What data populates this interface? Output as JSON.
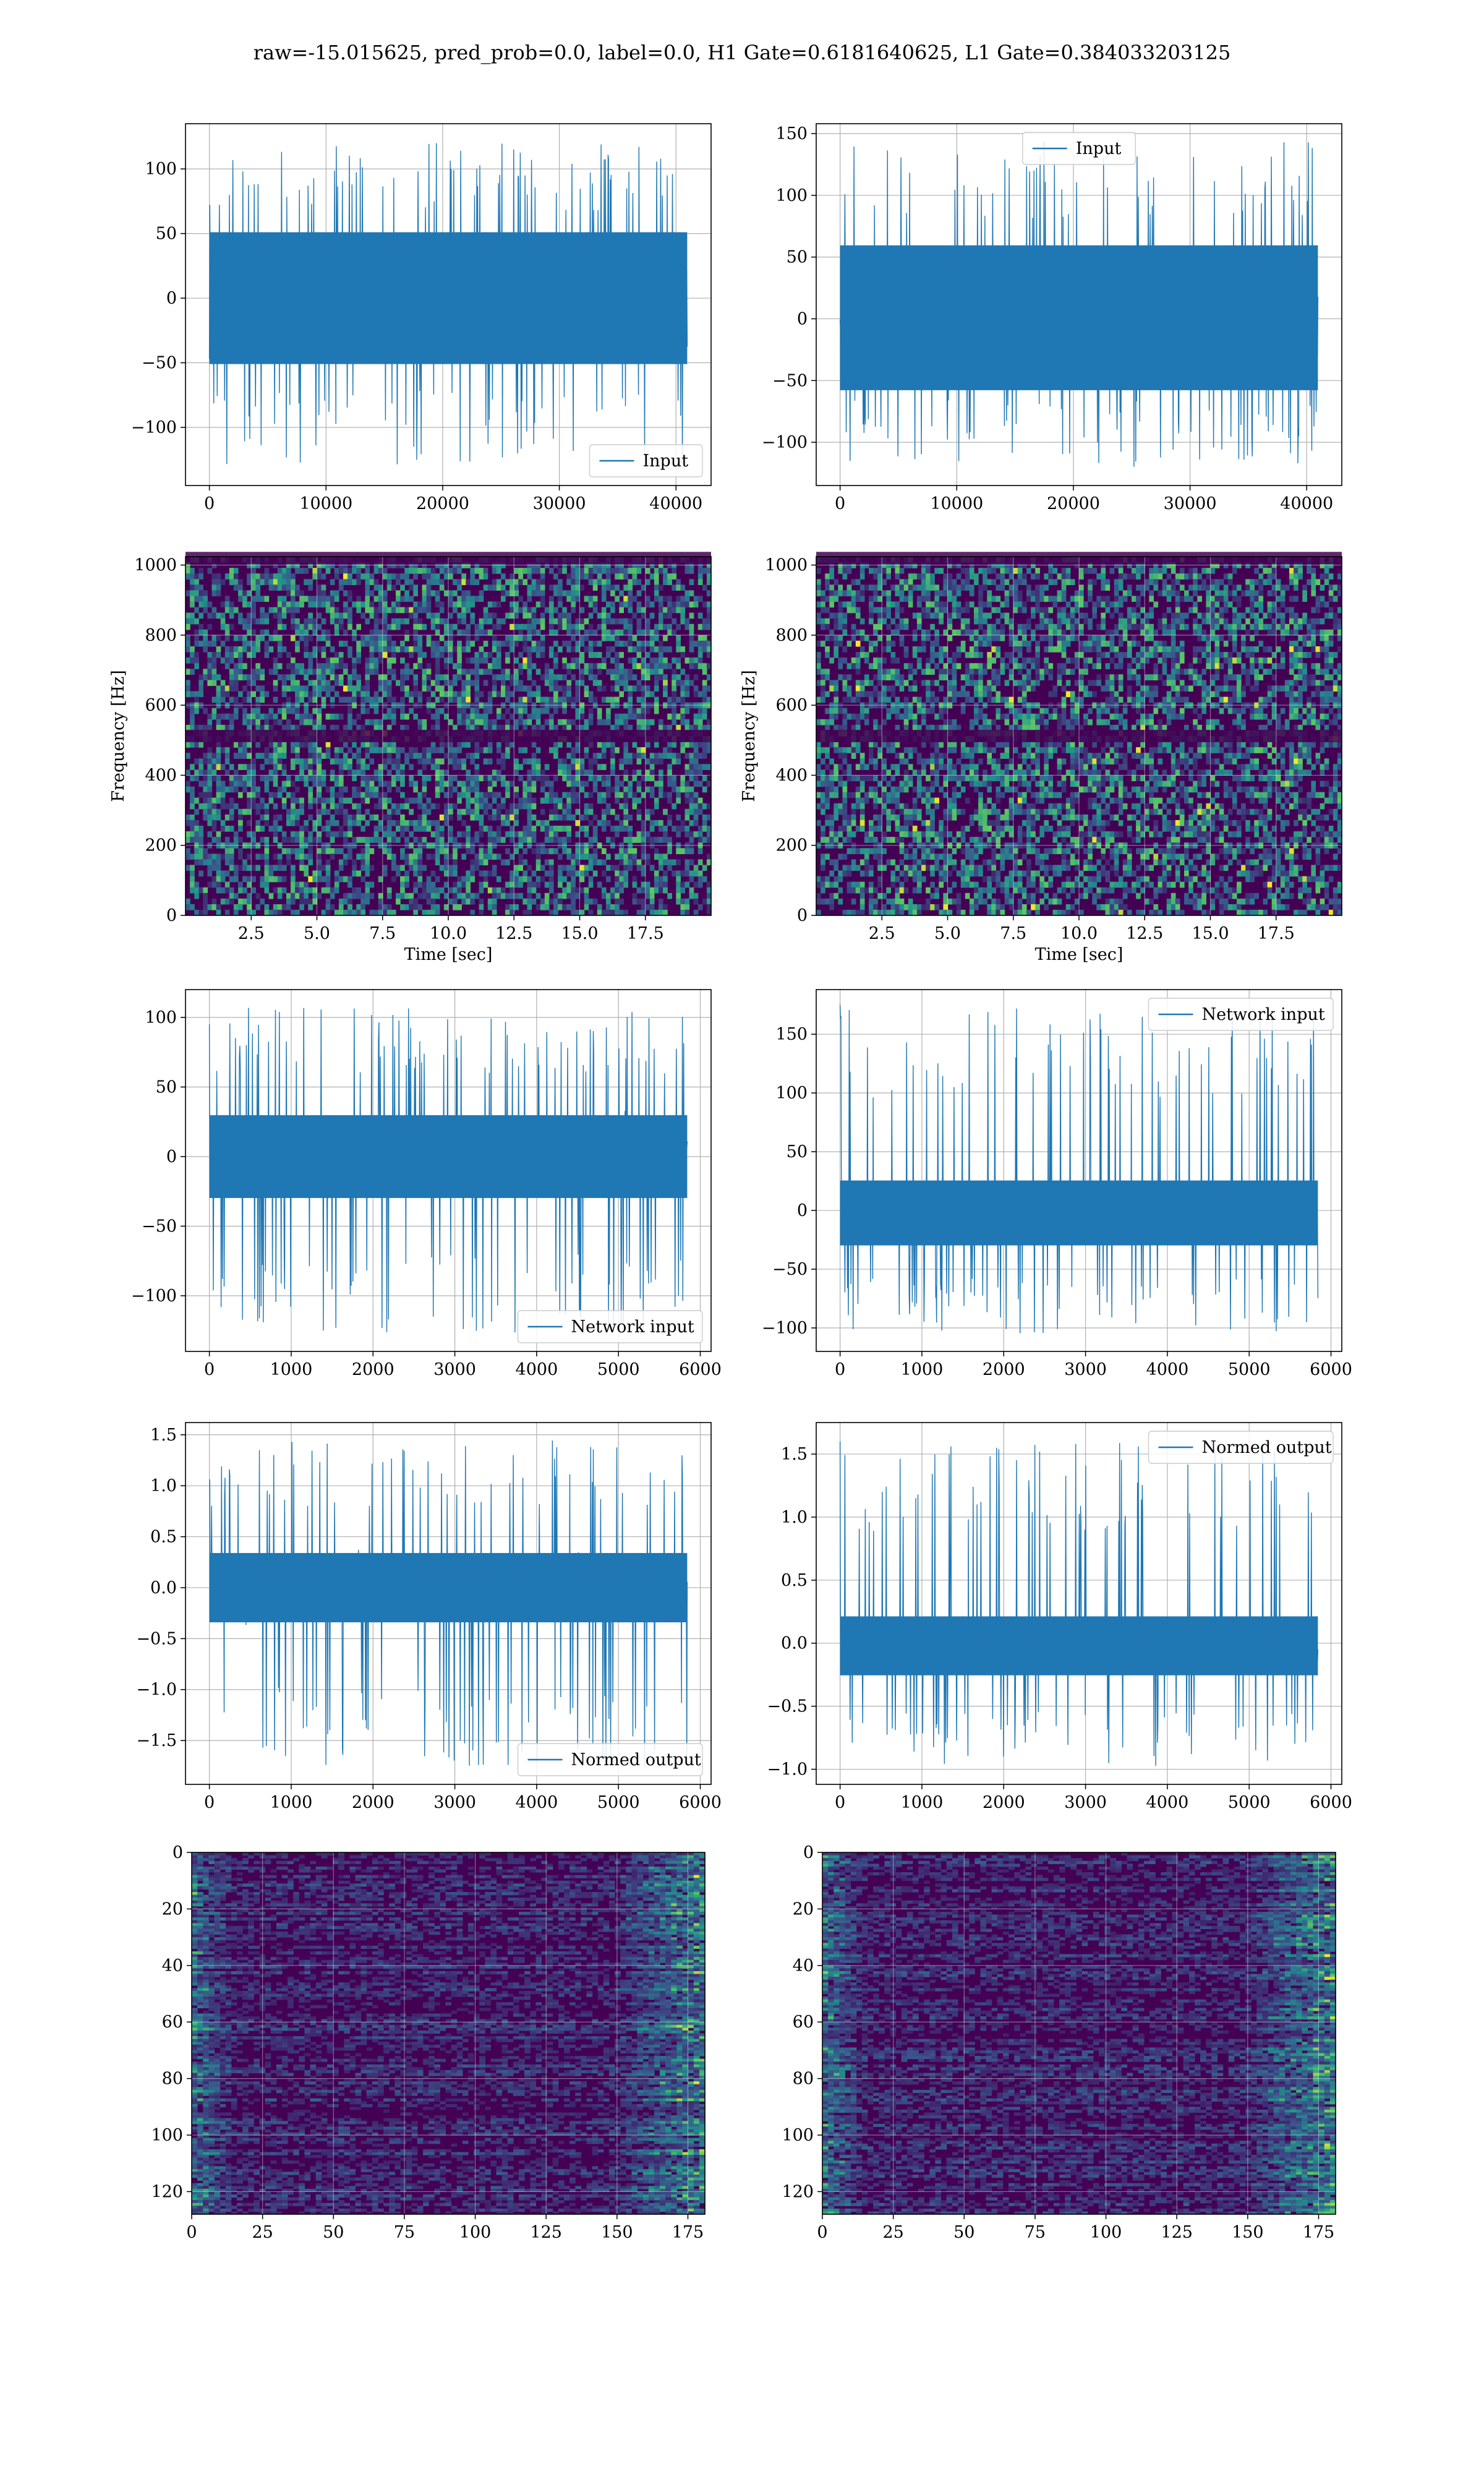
{
  "figure": {
    "title": "raw=-15.015625, pred_prob=0.0, label=0.0, H1 Gate=0.6181640625, L1 Gate=0.384033203125"
  },
  "colors": {
    "series": "#1f77b4",
    "grid": "#b0b0b0",
    "viridis_low": "#440154",
    "viridis_mid": "#21918c",
    "viridis_high": "#fde725"
  },
  "chart_data": [
    {
      "id": "h1-input",
      "type": "line",
      "series": [
        {
          "name": "Input"
        }
      ],
      "x_range": [
        0,
        40960
      ],
      "band": [
        -60,
        60
      ],
      "spike_range": [
        -130,
        122
      ],
      "xlim": [
        -2048,
        43008
      ],
      "ylim": [
        -145,
        135
      ],
      "xticks": [
        0,
        10000,
        20000,
        30000,
        40000
      ],
      "xtick_labels": [
        "0",
        "10000",
        "20000",
        "30000",
        "40000"
      ],
      "yticks": [
        -100,
        -50,
        0,
        50,
        100
      ],
      "ytick_labels": [
        "−100",
        "−50",
        "0",
        "50",
        "100"
      ],
      "legend": "lower right",
      "grid": true,
      "xlabel": "",
      "ylabel": ""
    },
    {
      "id": "l1-input",
      "type": "line",
      "series": [
        {
          "name": "Input"
        }
      ],
      "x_range": [
        0,
        40960
      ],
      "band": [
        -68,
        70
      ],
      "spike_range": [
        -120,
        145
      ],
      "xlim": [
        -2048,
        43008
      ],
      "ylim": [
        -135,
        158
      ],
      "xticks": [
        0,
        10000,
        20000,
        30000,
        40000
      ],
      "xtick_labels": [
        "0",
        "10000",
        "20000",
        "30000",
        "40000"
      ],
      "yticks": [
        -100,
        -50,
        0,
        50,
        100,
        150
      ],
      "ytick_labels": [
        "−100",
        "−50",
        "0",
        "50",
        "100",
        "150"
      ],
      "legend": "upper center",
      "grid": true,
      "xlabel": "",
      "ylabel": ""
    },
    {
      "id": "h1-spectrogram",
      "type": "heatmap",
      "xlim": [
        0,
        20
      ],
      "ylim": [
        0,
        1024
      ],
      "xticks": [
        2.5,
        5,
        7.5,
        10,
        12.5,
        15,
        17.5
      ],
      "xtick_labels": [
        "2.5",
        "5.0",
        "7.5",
        "10.0",
        "12.5",
        "15.0",
        "17.5"
      ],
      "yticks": [
        0,
        200,
        400,
        600,
        800,
        1000
      ],
      "ytick_labels": [
        "0",
        "200",
        "400",
        "600",
        "800",
        "1000"
      ],
      "dark_bands": [
        512,
        1020
      ],
      "grid": true,
      "xlabel": "Time [sec]",
      "ylabel": "Frequency [Hz]"
    },
    {
      "id": "l1-spectrogram",
      "type": "heatmap",
      "xlim": [
        0,
        20
      ],
      "ylim": [
        0,
        1024
      ],
      "xticks": [
        2.5,
        5,
        7.5,
        10,
        12.5,
        15,
        17.5
      ],
      "xtick_labels": [
        "2.5",
        "5.0",
        "7.5",
        "10.0",
        "12.5",
        "15.0",
        "17.5"
      ],
      "yticks": [
        0,
        200,
        400,
        600,
        800,
        1000
      ],
      "ytick_labels": [
        "0",
        "200",
        "400",
        "600",
        "800",
        "1000"
      ],
      "dark_bands": [
        512,
        1020
      ],
      "grid": true,
      "xlabel": "Time [sec]",
      "ylabel": "Frequency [Hz]"
    },
    {
      "id": "h1-network-input",
      "type": "line",
      "series": [
        {
          "name": "Network input"
        }
      ],
      "x_range": [
        0,
        5840
      ],
      "band": [
        -35,
        35
      ],
      "spike_range": [
        -128,
        108
      ],
      "xlim": [
        -292,
        6132
      ],
      "ylim": [
        -140,
        120
      ],
      "xticks": [
        0,
        1000,
        2000,
        3000,
        4000,
        5000,
        6000
      ],
      "xtick_labels": [
        "0",
        "1000",
        "2000",
        "3000",
        "4000",
        "5000",
        "6000"
      ],
      "yticks": [
        -100,
        -50,
        0,
        50,
        100
      ],
      "ytick_labels": [
        "−100",
        "−50",
        "0",
        "50",
        "100"
      ],
      "legend": "lower right",
      "grid": true,
      "xlabel": "",
      "ylabel": ""
    },
    {
      "id": "l1-network-input",
      "type": "line",
      "series": [
        {
          "name": "Network input"
        }
      ],
      "x_range": [
        0,
        5840
      ],
      "band": [
        -35,
        30
      ],
      "spike_range": [
        -105,
        175
      ],
      "xlim": [
        -292,
        6132
      ],
      "ylim": [
        -120,
        188
      ],
      "xticks": [
        0,
        1000,
        2000,
        3000,
        4000,
        5000,
        6000
      ],
      "xtick_labels": [
        "0",
        "1000",
        "2000",
        "3000",
        "4000",
        "5000",
        "6000"
      ],
      "yticks": [
        -100,
        -50,
        0,
        50,
        100,
        150
      ],
      "ytick_labels": [
        "−100",
        "−50",
        "0",
        "50",
        "100",
        "150"
      ],
      "legend": "upper right",
      "grid": true,
      "xlabel": "",
      "ylabel": ""
    },
    {
      "id": "h1-normed-output",
      "type": "line",
      "series": [
        {
          "name": "Normed output"
        }
      ],
      "x_range": [
        0,
        5840
      ],
      "band": [
        -0.4,
        0.4
      ],
      "spike_range": [
        -1.75,
        1.45
      ],
      "xlim": [
        -292,
        6132
      ],
      "ylim": [
        -1.93,
        1.62
      ],
      "xticks": [
        0,
        1000,
        2000,
        3000,
        4000,
        5000,
        6000
      ],
      "xtick_labels": [
        "0",
        "1000",
        "2000",
        "3000",
        "4000",
        "5000",
        "6000"
      ],
      "yticks": [
        -1.5,
        -1.0,
        -0.5,
        0.0,
        0.5,
        1.0,
        1.5
      ],
      "ytick_labels": [
        "−1.5",
        "−1.0",
        "−0.5",
        "0.0",
        "0.5",
        "1.0",
        "1.5"
      ],
      "legend": "lower right",
      "grid": true,
      "xlabel": "",
      "ylabel": ""
    },
    {
      "id": "l1-normed-output",
      "type": "line",
      "series": [
        {
          "name": "Normed output"
        }
      ],
      "x_range": [
        0,
        5840
      ],
      "band": [
        -0.3,
        0.25
      ],
      "spike_range": [
        -0.98,
        1.6
      ],
      "xlim": [
        -292,
        6132
      ],
      "ylim": [
        -1.12,
        1.75
      ],
      "xticks": [
        0,
        1000,
        2000,
        3000,
        4000,
        5000,
        6000
      ],
      "xtick_labels": [
        "0",
        "1000",
        "2000",
        "3000",
        "4000",
        "5000",
        "6000"
      ],
      "yticks": [
        -1.0,
        -0.5,
        0.0,
        0.5,
        1.0,
        1.5
      ],
      "ytick_labels": [
        "−1.0",
        "−0.5",
        "0.0",
        "0.5",
        "1.0",
        "1.5"
      ],
      "legend": "upper right",
      "grid": true,
      "xlabel": "",
      "ylabel": ""
    },
    {
      "id": "h1-feature-map",
      "type": "heatmap",
      "xlim": [
        0,
        181
      ],
      "ylim": [
        128,
        0
      ],
      "xticks": [
        0,
        25,
        50,
        75,
        100,
        125,
        150,
        175
      ],
      "xtick_labels": [
        "0",
        "25",
        "50",
        "75",
        "100",
        "125",
        "150",
        "175"
      ],
      "yticks": [
        0,
        20,
        40,
        60,
        80,
        100,
        120
      ],
      "ytick_labels": [
        "0",
        "20",
        "40",
        "60",
        "80",
        "100",
        "120"
      ],
      "grid": true,
      "xlabel": "",
      "ylabel": ""
    },
    {
      "id": "l1-feature-map",
      "type": "heatmap",
      "xlim": [
        0,
        181
      ],
      "ylim": [
        128,
        0
      ],
      "xticks": [
        0,
        25,
        50,
        75,
        100,
        125,
        150,
        175
      ],
      "xtick_labels": [
        "0",
        "25",
        "50",
        "75",
        "100",
        "125",
        "150",
        "175"
      ],
      "yticks": [
        0,
        20,
        40,
        60,
        80,
        100,
        120
      ],
      "ytick_labels": [
        "0",
        "20",
        "40",
        "60",
        "80",
        "100",
        "120"
      ],
      "grid": true,
      "xlabel": "",
      "ylabel": ""
    }
  ]
}
